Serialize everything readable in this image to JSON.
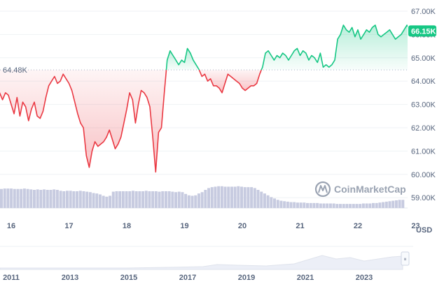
{
  "chart_data": {
    "type": "line",
    "title": "",
    "xlabel": "",
    "ylabel": "",
    "unit_label": "USD",
    "ylim": [
      59.2,
      67.3
    ],
    "y_ticks": [
      "67.00K",
      "66.00K",
      "65.00K",
      "64.00K",
      "63.00K",
      "62.00K",
      "61.00K",
      "60.00K",
      "59.00K"
    ],
    "x_ticks": [
      "16",
      "17",
      "18",
      "19",
      "20",
      "21",
      "22",
      "23"
    ],
    "reference_line": {
      "value": 64.48,
      "label": "64.48K"
    },
    "current_price": {
      "value": 66.15,
      "label": "66.15K"
    },
    "colors": {
      "up": "#16c784",
      "down": "#ea3943",
      "axis_text": "#58667e",
      "volume": "#c7cbe0",
      "navigator": "#eceff7"
    },
    "series": [
      {
        "x": [
          15.55,
          15.6,
          15.65,
          15.7,
          15.75,
          15.8,
          15.85,
          15.9,
          15.95,
          16.0,
          16.05,
          16.1,
          16.15,
          16.2,
          16.25,
          16.3,
          16.35,
          16.4,
          16.45,
          16.5,
          16.55,
          16.6,
          16.65,
          16.7,
          16.75,
          16.8,
          16.85,
          16.9,
          16.95,
          17.0,
          17.05,
          17.1,
          17.15,
          17.2,
          17.25,
          17.3,
          17.35,
          17.4,
          17.45,
          17.5,
          17.55,
          17.6,
          17.65,
          17.7,
          17.75,
          17.8,
          17.85,
          17.9,
          17.95,
          18.0,
          18.05,
          18.1,
          18.15,
          18.2,
          18.25,
          18.3,
          18.35,
          18.4,
          18.45,
          18.5,
          18.55,
          18.6,
          18.65,
          18.7,
          18.75,
          18.8,
          18.85,
          18.9,
          18.95,
          19.0,
          19.05,
          19.1,
          19.15,
          19.2,
          19.25,
          19.3,
          19.35,
          19.4,
          19.45,
          19.5,
          19.55,
          19.6,
          19.65,
          19.7,
          19.75,
          19.8,
          19.85,
          19.9,
          19.95,
          20.0,
          20.05,
          20.1,
          20.15,
          20.2,
          20.25,
          20.3,
          20.35,
          20.4,
          20.45,
          20.5,
          20.55,
          20.6,
          20.65,
          20.7,
          20.75,
          20.8,
          20.85,
          20.9,
          20.95,
          21.0,
          21.05,
          21.1,
          21.15,
          21.2,
          21.25,
          21.3,
          21.35,
          21.4,
          21.45,
          21.5,
          21.55,
          21.6,
          21.65,
          21.7,
          21.75,
          21.8,
          21.85,
          21.9,
          21.95,
          22.0,
          22.05,
          22.1,
          22.15,
          22.2,
          22.25,
          22.3,
          22.35,
          22.4,
          22.45,
          22.5,
          22.55,
          22.6,
          22.65,
          22.7,
          22.75,
          22.8,
          22.85,
          22.9,
          22.95,
          23.0,
          23.05,
          23.1,
          23.15,
          23.2,
          23.25,
          23.3,
          23.35,
          23.4
        ],
        "values": [
          64.1,
          63.8,
          63.4,
          63.6,
          63.3,
          63.5,
          63.2,
          63.5,
          63.4,
          63.0,
          62.6,
          63.3,
          62.5,
          63.1,
          62.9,
          62.3,
          62.8,
          63.1,
          62.5,
          62.4,
          62.7,
          63.3,
          63.8,
          64.0,
          64.2,
          63.9,
          64.0,
          64.3,
          64.1,
          63.9,
          63.6,
          63.1,
          62.6,
          62.2,
          62.0,
          60.8,
          60.3,
          61.0,
          61.4,
          61.2,
          61.3,
          61.4,
          61.6,
          61.9,
          61.5,
          61.1,
          61.3,
          61.6,
          62.2,
          62.8,
          63.5,
          63.2,
          62.2,
          63.0,
          63.6,
          63.5,
          63.3,
          62.9,
          61.6,
          60.1,
          61.8,
          62.0,
          63.5,
          64.9,
          65.3,
          65.1,
          64.9,
          64.7,
          64.9,
          64.8,
          65.4,
          65.2,
          64.9,
          64.7,
          64.5,
          64.2,
          64.3,
          64.0,
          64.1,
          63.8,
          63.8,
          63.7,
          63.5,
          63.9,
          64.3,
          64.2,
          64.1,
          64.0,
          63.9,
          63.7,
          63.6,
          63.7,
          63.8,
          63.8,
          63.9,
          64.3,
          64.6,
          65.2,
          65.3,
          65.1,
          64.9,
          65.1,
          65.0,
          65.2,
          65.1,
          64.9,
          65.1,
          65.3,
          65.4,
          65.1,
          65.3,
          65.2,
          64.9,
          65.1,
          65.0,
          64.8,
          65.2,
          64.6,
          64.7,
          64.6,
          64.7,
          64.9,
          65.8,
          66.0,
          66.4,
          66.2,
          66.1,
          66.3,
          65.9,
          66.2,
          65.8,
          66.0,
          66.2,
          66.1,
          66.3,
          66.4,
          66.0,
          65.9,
          66.0,
          66.1,
          66.2,
          66.0,
          65.8,
          65.9,
          66.0,
          66.2,
          66.4,
          66.2,
          66.3,
          66.3,
          66.0,
          66.1,
          66.4,
          66.3,
          66.1,
          66.2,
          66.2,
          66.15
        ]
      }
    ],
    "volume": [
      0.42,
      0.43,
      0.43,
      0.43,
      0.42,
      0.42,
      0.42,
      0.43,
      0.42,
      0.41,
      0.4,
      0.41,
      0.4,
      0.41,
      0.4,
      0.4,
      0.41,
      0.4,
      0.38,
      0.37,
      0.38,
      0.38,
      0.37,
      0.37,
      0.38,
      0.37,
      0.36,
      0.35,
      0.33,
      0.32,
      0.3,
      0.27,
      0.25,
      0.27,
      0.36,
      0.37,
      0.37,
      0.37,
      0.37,
      0.37,
      0.38,
      0.37,
      0.37,
      0.37,
      0.38,
      0.37,
      0.37,
      0.37,
      0.36,
      0.37,
      0.37,
      0.37,
      0.36,
      0.35,
      0.36,
      0.35,
      0.31,
      0.28,
      0.27,
      0.28,
      0.32,
      0.35,
      0.4,
      0.44,
      0.46,
      0.47,
      0.48,
      0.48,
      0.47,
      0.47,
      0.47,
      0.47,
      0.48,
      0.47,
      0.46,
      0.46,
      0.46,
      0.44,
      0.4,
      0.36,
      0.32,
      0.28,
      0.24,
      0.21,
      0.18,
      0.16,
      0.15,
      0.14,
      0.13,
      0.13,
      0.12,
      0.12,
      0.12,
      0.11,
      0.11,
      0.11,
      0.11,
      0.1,
      0.1,
      0.1,
      0.1,
      0.1,
      0.09,
      0.09,
      0.09,
      0.09,
      0.09,
      0.09,
      0.09,
      0.09,
      0.1,
      0.1,
      0.1,
      0.11,
      0.11,
      0.12,
      0.13,
      0.14,
      0.15,
      0.16,
      0.17,
      0.18,
      0.18
    ]
  },
  "navigator": {
    "years": [
      "2011",
      "2013",
      "2015",
      "2017",
      "2019",
      "2021",
      "2023"
    ],
    "handle_glyph": "⏸"
  },
  "watermark": {
    "text": "CoinMarketCap",
    "icon": "coinmarketcap-logo-icon"
  }
}
